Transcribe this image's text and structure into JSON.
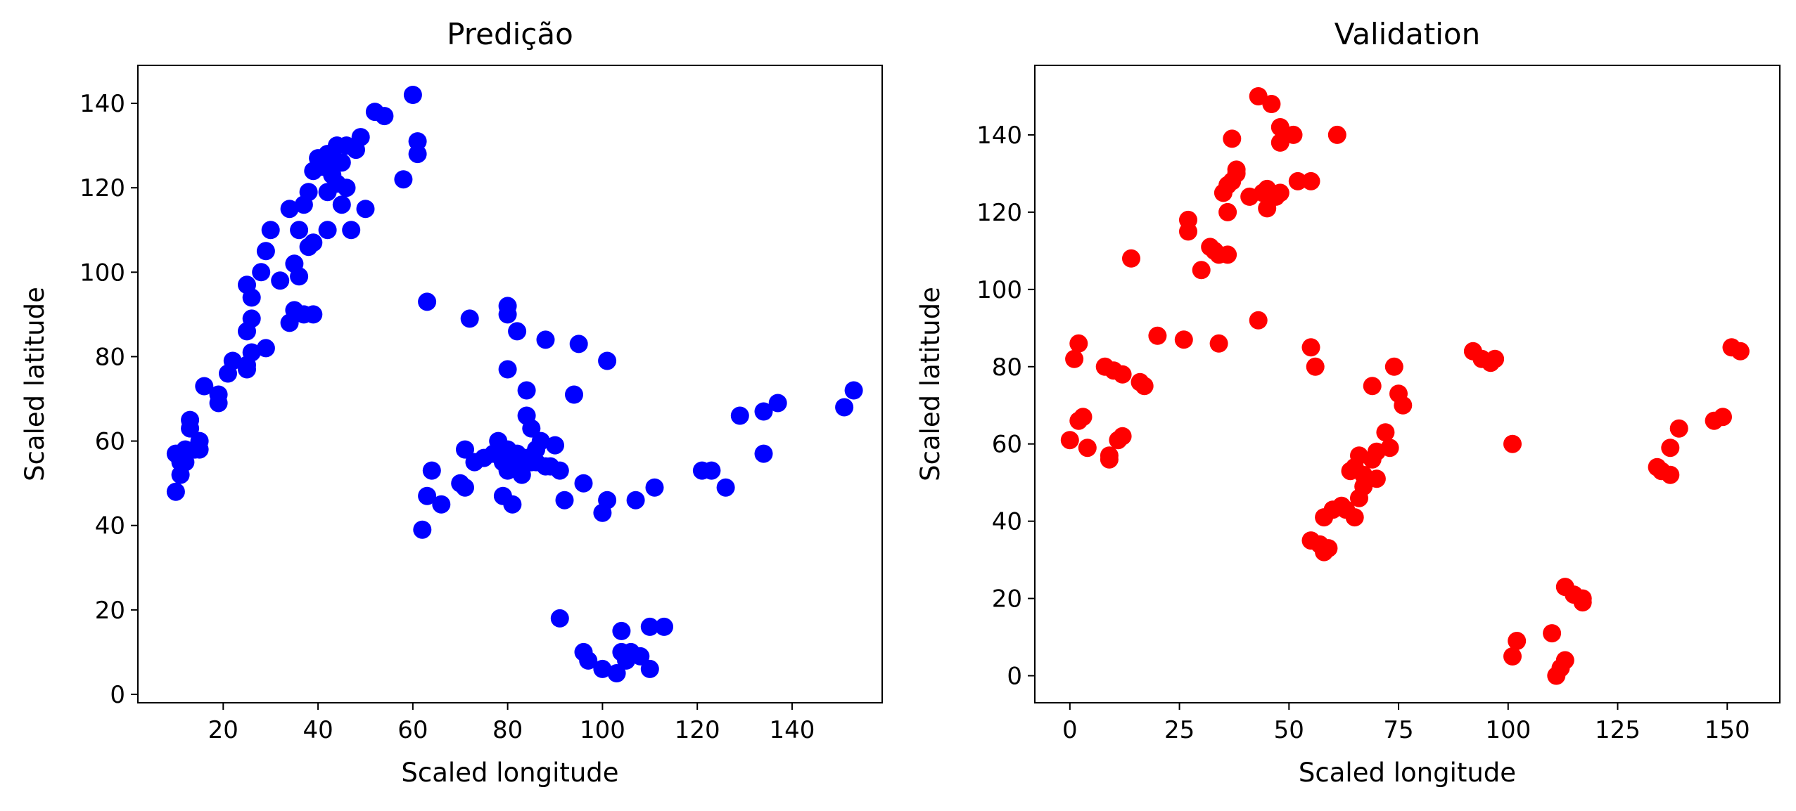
{
  "chart_data": [
    {
      "type": "scatter",
      "title": "Predição",
      "xlabel": "Scaled longitude",
      "ylabel": "Scaled latitude",
      "xlim": [
        2,
        159
      ],
      "ylim": [
        -2,
        149
      ],
      "xticks": [
        20,
        40,
        60,
        80,
        100,
        120,
        140
      ],
      "yticks": [
        0,
        20,
        40,
        60,
        80,
        100,
        120,
        140
      ],
      "grid": false,
      "color": "#0000ff",
      "points": [
        [
          60,
          142
        ],
        [
          52,
          138
        ],
        [
          54,
          137
        ],
        [
          61,
          131
        ],
        [
          61,
          128
        ],
        [
          58,
          122
        ],
        [
          49,
          132
        ],
        [
          48,
          129
        ],
        [
          46,
          130
        ],
        [
          44,
          130
        ],
        [
          42,
          128
        ],
        [
          40,
          127
        ],
        [
          39,
          124
        ],
        [
          41,
          125
        ],
        [
          44,
          126
        ],
        [
          43,
          123
        ],
        [
          45,
          126
        ],
        [
          44,
          121
        ],
        [
          46,
          120
        ],
        [
          42,
          119
        ],
        [
          38,
          119
        ],
        [
          37,
          116
        ],
        [
          45,
          116
        ],
        [
          50,
          115
        ],
        [
          34,
          115
        ],
        [
          36,
          110
        ],
        [
          30,
          110
        ],
        [
          42,
          110
        ],
        [
          47,
          110
        ],
        [
          38,
          106
        ],
        [
          39,
          107
        ],
        [
          29,
          105
        ],
        [
          35,
          102
        ],
        [
          28,
          100
        ],
        [
          32,
          98
        ],
        [
          36,
          99
        ],
        [
          25,
          97
        ],
        [
          26,
          94
        ],
        [
          22,
          79
        ],
        [
          26,
          89
        ],
        [
          25,
          86
        ],
        [
          29,
          82
        ],
        [
          21,
          76
        ],
        [
          26,
          81
        ],
        [
          25,
          78
        ],
        [
          25,
          77
        ],
        [
          19,
          69
        ],
        [
          16,
          73
        ],
        [
          19,
          71
        ],
        [
          34,
          88
        ],
        [
          35,
          91
        ],
        [
          37,
          90
        ],
        [
          39,
          90
        ],
        [
          13,
          65
        ],
        [
          13,
          63
        ],
        [
          15,
          60
        ],
        [
          12,
          58
        ],
        [
          10,
          57
        ],
        [
          11,
          55
        ],
        [
          12,
          55
        ],
        [
          11,
          52
        ],
        [
          10,
          48
        ],
        [
          14,
          58
        ],
        [
          15,
          58
        ],
        [
          63,
          93
        ],
        [
          72,
          89
        ],
        [
          80,
          92
        ],
        [
          80,
          90
        ],
        [
          82,
          86
        ],
        [
          88,
          84
        ],
        [
          95,
          83
        ],
        [
          101,
          79
        ],
        [
          80,
          77
        ],
        [
          84,
          72
        ],
        [
          94,
          71
        ],
        [
          84,
          66
        ],
        [
          85,
          63
        ],
        [
          78,
          60
        ],
        [
          80,
          58
        ],
        [
          82,
          57
        ],
        [
          87,
          60
        ],
        [
          86,
          58
        ],
        [
          90,
          59
        ],
        [
          77,
          57
        ],
        [
          75,
          56
        ],
        [
          73,
          55
        ],
        [
          79,
          55
        ],
        [
          82,
          54
        ],
        [
          84,
          56
        ],
        [
          85,
          55
        ],
        [
          86,
          55
        ],
        [
          88,
          54
        ],
        [
          89,
          54
        ],
        [
          91,
          53
        ],
        [
          80,
          53
        ],
        [
          83,
          52
        ],
        [
          71,
          58
        ],
        [
          64,
          53
        ],
        [
          70,
          50
        ],
        [
          71,
          49
        ],
        [
          63,
          47
        ],
        [
          66,
          45
        ],
        [
          79,
          47
        ],
        [
          81,
          45
        ],
        [
          92,
          46
        ],
        [
          96,
          50
        ],
        [
          101,
          46
        ],
        [
          100,
          43
        ],
        [
          107,
          46
        ],
        [
          111,
          49
        ],
        [
          121,
          53
        ],
        [
          123,
          53
        ],
        [
          126,
          49
        ],
        [
          62,
          39
        ],
        [
          129,
          66
        ],
        [
          134,
          67
        ],
        [
          137,
          69
        ],
        [
          151,
          68
        ],
        [
          153,
          72
        ],
        [
          134,
          57
        ],
        [
          91,
          18
        ],
        [
          96,
          10
        ],
        [
          97,
          8
        ],
        [
          100,
          6
        ],
        [
          103,
          5
        ],
        [
          104,
          15
        ],
        [
          104,
          10
        ],
        [
          106,
          10
        ],
        [
          105,
          8
        ],
        [
          108,
          9
        ],
        [
          110,
          6
        ],
        [
          110,
          16
        ],
        [
          113,
          16
        ]
      ]
    },
    {
      "type": "scatter",
      "title": "Validation",
      "xlabel": "Scaled longitude",
      "ylabel": "Scaled latitude",
      "xlim": [
        -8,
        162
      ],
      "ylim": [
        -7,
        158
      ],
      "xticks": [
        0,
        25,
        50,
        75,
        100,
        125,
        150
      ],
      "yticks": [
        0,
        20,
        40,
        60,
        80,
        100,
        120,
        140
      ],
      "grid": false,
      "color": "#ff0000",
      "points": [
        [
          43,
          150
        ],
        [
          46,
          148
        ],
        [
          48,
          142
        ],
        [
          51,
          140
        ],
        [
          48,
          138
        ],
        [
          61,
          140
        ],
        [
          37,
          139
        ],
        [
          38,
          130
        ],
        [
          37,
          128
        ],
        [
          38,
          131
        ],
        [
          36,
          127
        ],
        [
          45,
          126
        ],
        [
          44,
          125
        ],
        [
          47,
          124
        ],
        [
          48,
          125
        ],
        [
          41,
          124
        ],
        [
          45,
          121
        ],
        [
          35,
          125
        ],
        [
          36,
          120
        ],
        [
          52,
          128
        ],
        [
          55,
          128
        ],
        [
          27,
          118
        ],
        [
          27,
          115
        ],
        [
          14,
          108
        ],
        [
          32,
          111
        ],
        [
          33,
          110
        ],
        [
          34,
          109
        ],
        [
          36,
          109
        ],
        [
          30,
          105
        ],
        [
          43,
          92
        ],
        [
          34,
          86
        ],
        [
          20,
          88
        ],
        [
          26,
          87
        ],
        [
          2,
          86
        ],
        [
          1,
          82
        ],
        [
          55,
          85
        ],
        [
          56,
          80
        ],
        [
          8,
          80
        ],
        [
          10,
          79
        ],
        [
          12,
          78
        ],
        [
          16,
          76
        ],
        [
          17,
          75
        ],
        [
          69,
          75
        ],
        [
          74,
          80
        ],
        [
          75,
          73
        ],
        [
          76,
          70
        ],
        [
          3,
          67
        ],
        [
          2,
          66
        ],
        [
          0,
          61
        ],
        [
          4,
          59
        ],
        [
          9,
          57
        ],
        [
          9,
          56
        ],
        [
          12,
          62
        ],
        [
          11,
          61
        ],
        [
          72,
          63
        ],
        [
          73,
          59
        ],
        [
          70,
          58
        ],
        [
          69,
          56
        ],
        [
          66,
          57
        ],
        [
          65,
          54
        ],
        [
          64,
          53
        ],
        [
          67,
          52
        ],
        [
          67,
          49
        ],
        [
          70,
          51
        ],
        [
          66,
          46
        ],
        [
          58,
          41
        ],
        [
          60,
          43
        ],
        [
          62,
          44
        ],
        [
          63,
          43
        ],
        [
          65,
          41
        ],
        [
          55,
          35
        ],
        [
          57,
          34
        ],
        [
          58,
          32
        ],
        [
          59,
          33
        ],
        [
          92,
          84
        ],
        [
          94,
          82
        ],
        [
          96,
          81
        ],
        [
          97,
          82
        ],
        [
          101,
          60
        ],
        [
          134,
          54
        ],
        [
          135,
          53
        ],
        [
          137,
          52
        ],
        [
          137,
          59
        ],
        [
          139,
          64
        ],
        [
          147,
          66
        ],
        [
          149,
          67
        ],
        [
          151,
          85
        ],
        [
          153,
          84
        ],
        [
          113,
          23
        ],
        [
          115,
          21
        ],
        [
          117,
          20
        ],
        [
          117,
          19
        ],
        [
          110,
          11
        ],
        [
          102,
          9
        ],
        [
          101,
          5
        ],
        [
          111,
          0
        ],
        [
          112,
          2
        ],
        [
          113,
          4
        ]
      ]
    }
  ]
}
